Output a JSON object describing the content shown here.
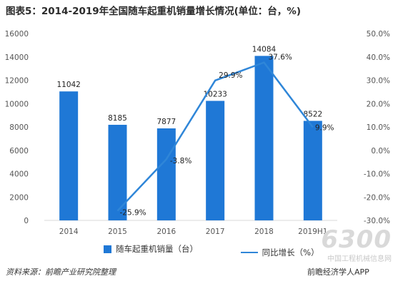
{
  "title": "图表5：2014-2019年全国随车起重机销量增长情况(单位：台，%)",
  "colors": {
    "bar": "#1f78d6",
    "line": "#2f86d8",
    "axis": "#d9d9d9"
  },
  "chart_data": {
    "type": "bar",
    "categories": [
      "2014",
      "2015",
      "2016",
      "2017",
      "2018",
      "2019H1"
    ],
    "series": [
      {
        "name": "随车起重机销量（台）",
        "type": "bar",
        "axis": "left",
        "values": [
          11042,
          8185,
          7877,
          10233,
          14084,
          8522
        ],
        "labels": [
          "11042",
          "8185",
          "7877",
          "10233",
          "14084",
          "8522"
        ]
      },
      {
        "name": "同比增长（%）",
        "type": "line",
        "axis": "right",
        "values": [
          null,
          -25.9,
          -3.8,
          29.9,
          37.6,
          9.9
        ],
        "labels": [
          "",
          "-25.9%",
          "-3.8%",
          "29.9%",
          "37.6%",
          "9.9%"
        ]
      }
    ],
    "y_left": {
      "ylim": [
        0,
        16000
      ],
      "ticks": [
        "0",
        "2000",
        "4000",
        "6000",
        "8000",
        "10000",
        "12000",
        "14000",
        "16000"
      ]
    },
    "y_right": {
      "ylim": [
        -30,
        50
      ],
      "ticks": [
        "-30.0%",
        "-20.0%",
        "-10.0%",
        "0.0%",
        "10.0%",
        "20.0%",
        "30.0%",
        "40.0%",
        "50.0%"
      ]
    },
    "legend": "bottom",
    "grid": false
  },
  "source": "资料来源：前瞻产业研究院整理",
  "watermark": {
    "big": "6300",
    "cn": "中国工程机械信息网",
    "app": "前瞻经济学人APP"
  }
}
